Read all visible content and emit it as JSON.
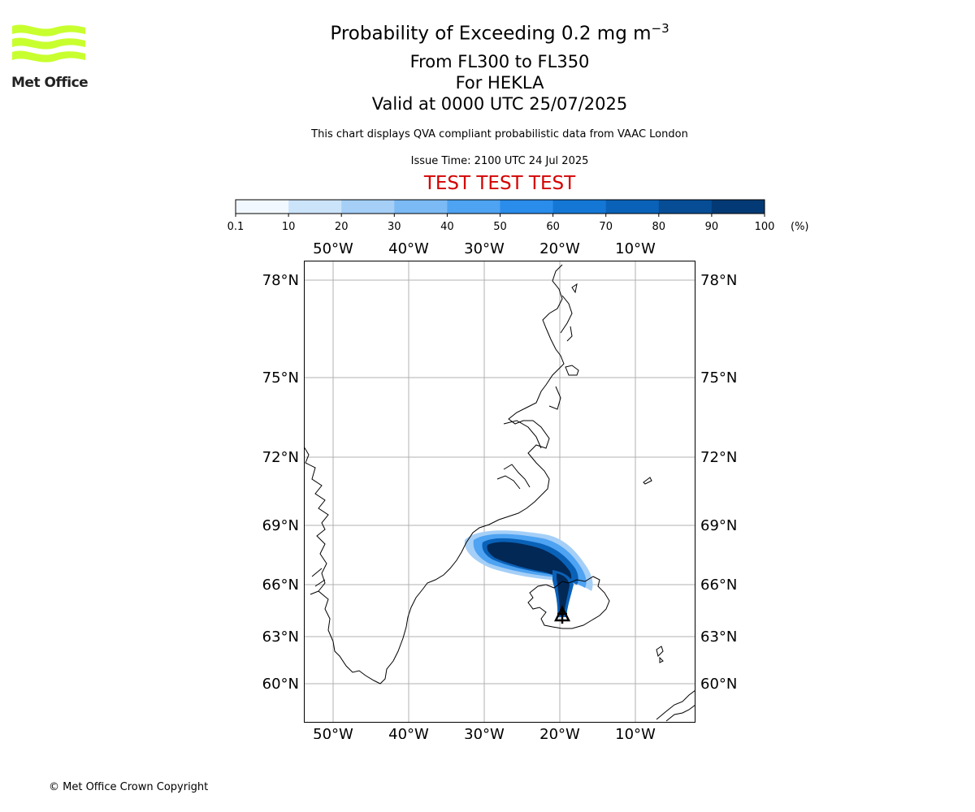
{
  "logo": {
    "name": "Met Office",
    "color": "#c8ff2e"
  },
  "title": {
    "main": "Probability of Exceeding 0.2 mg m",
    "main_sup": "−3",
    "line2": "From FL300 to FL350",
    "line3": "For HEKLA",
    "line4": "Valid at 0000 UTC 25/07/2025"
  },
  "description": "This chart displays QVA compliant probabilistic data from VAAC London",
  "issue_time": "Issue Time: 2100 UTC 24 Jul 2025",
  "banner": "TEST TEST TEST",
  "colorbar": {
    "ticks": [
      "0.1",
      "10",
      "20",
      "30",
      "40",
      "50",
      "60",
      "70",
      "80",
      "90",
      "100"
    ],
    "unit": "(%)",
    "colors": [
      "#f2f8ff",
      "#cce4fa",
      "#a5cff7",
      "#7bbaf5",
      "#4ea3f2",
      "#2a8ceb",
      "#1477d5",
      "#0a62b8",
      "#064d96",
      "#033a75",
      "#022856"
    ]
  },
  "map": {
    "lon_labels": [
      "50°W",
      "40°W",
      "30°W",
      "20°W",
      "10°W"
    ],
    "lat_labels": [
      "78°N",
      "75°N",
      "72°N",
      "69°N",
      "66°N",
      "63°N",
      "60°N"
    ],
    "volcano": "HEKLA"
  },
  "copyright": "© Met Office Crown Copyright"
}
